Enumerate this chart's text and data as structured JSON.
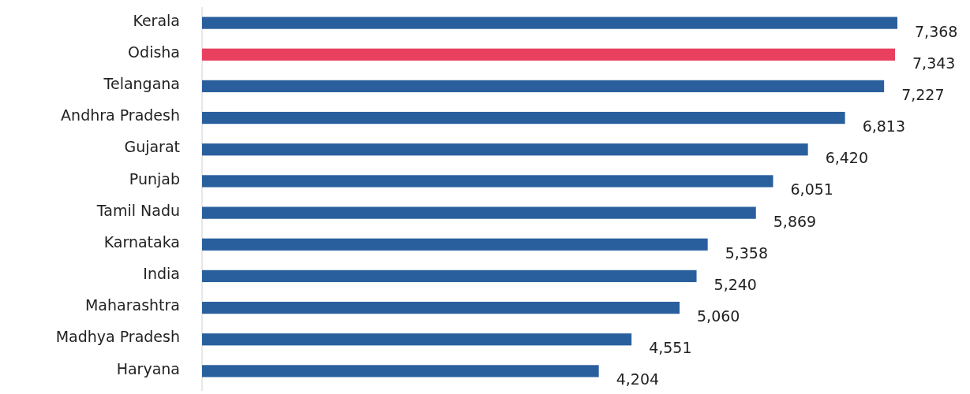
{
  "chart_data": {
    "type": "bar",
    "orientation": "horizontal",
    "value_labels": [
      "7,368",
      "7,343",
      "7,227",
      "6,813",
      "6,420",
      "6,051",
      "5,869",
      "5,358",
      "5,240",
      "5,060",
      "4,551",
      "4,204"
    ],
    "categories": [
      "Kerala",
      "Odisha",
      "Telangana",
      "Andhra Pradesh",
      "Gujarat",
      "Punjab",
      "Tamil Nadu",
      "Karnataka",
      "India",
      "Maharashtra",
      "Madhya Pradesh",
      "Haryana"
    ],
    "values": [
      7368,
      7343,
      7227,
      6813,
      6420,
      6051,
      5869,
      5358,
      5240,
      5060,
      4551,
      4204
    ],
    "colors": [
      "#2a5f9e",
      "#e8405e",
      "#2a5f9e",
      "#2a5f9e",
      "#2a5f9e",
      "#2a5f9e",
      "#2a5f9e",
      "#2a5f9e",
      "#2a5f9e",
      "#2a5f9e",
      "#2a5f9e",
      "#2a5f9e"
    ]
  }
}
